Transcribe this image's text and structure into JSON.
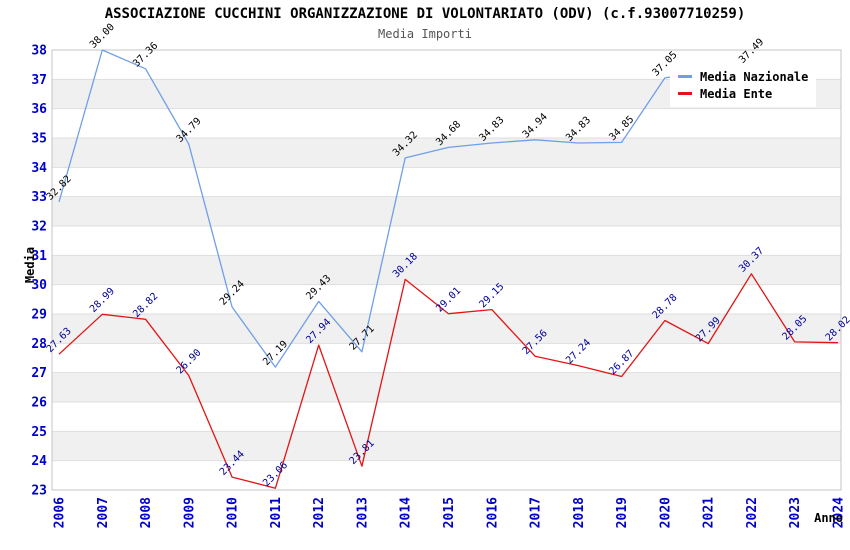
{
  "header": {
    "title": "ASSOCIAZIONE CUCCHINI ORGANIZZAZIONE DI VOLONTARIATO (ODV) (c.f.93007710259)",
    "subtitle": "Media Importi"
  },
  "axes": {
    "y_label": "Media",
    "x_label": "Anno"
  },
  "legend": {
    "position": "top-right",
    "items": [
      {
        "label": "Media Nazionale"
      },
      {
        "label": "Media Ente"
      }
    ]
  },
  "chart_data": {
    "type": "line",
    "title": "ASSOCIAZIONE CUCCHINI ORGANIZZAZIONE DI VOLONTARIATO (ODV) (c.f.93007710259)",
    "subtitle": "Media Importi",
    "xlabel": "Anno",
    "ylabel": "Media",
    "x": [
      2006,
      2007,
      2008,
      2009,
      2010,
      2011,
      2012,
      2013,
      2014,
      2015,
      2016,
      2017,
      2018,
      2019,
      2020,
      2021,
      2022,
      2023,
      2024
    ],
    "series": [
      {
        "name": "Media Nazionale",
        "color": "#6f9fe8",
        "label_color": "#000000",
        "values": [
          32.82,
          38.0,
          37.36,
          34.79,
          29.24,
          27.19,
          29.43,
          27.71,
          34.32,
          34.68,
          34.83,
          34.94,
          34.83,
          34.85,
          37.05,
          null,
          37.49,
          null,
          null
        ]
      },
      {
        "name": "Media Ente",
        "color": "#e41414",
        "label_color": "#000099",
        "values": [
          27.63,
          28.99,
          28.82,
          26.9,
          23.44,
          23.06,
          27.94,
          23.81,
          30.18,
          29.01,
          29.15,
          27.56,
          27.24,
          26.87,
          28.78,
          27.99,
          30.37,
          28.05,
          28.02
        ]
      }
    ],
    "ylim": [
      23,
      38
    ],
    "yticks": [
      23,
      24,
      25,
      26,
      27,
      28,
      29,
      30,
      31,
      32,
      33,
      34,
      35,
      36,
      37,
      38
    ],
    "grid": true,
    "legend_position": "top-right",
    "tick_color": "#0000cc",
    "band_color": "#f0f0f0",
    "gridline_color": "#dedede",
    "border_color": "#c4c4c4"
  }
}
